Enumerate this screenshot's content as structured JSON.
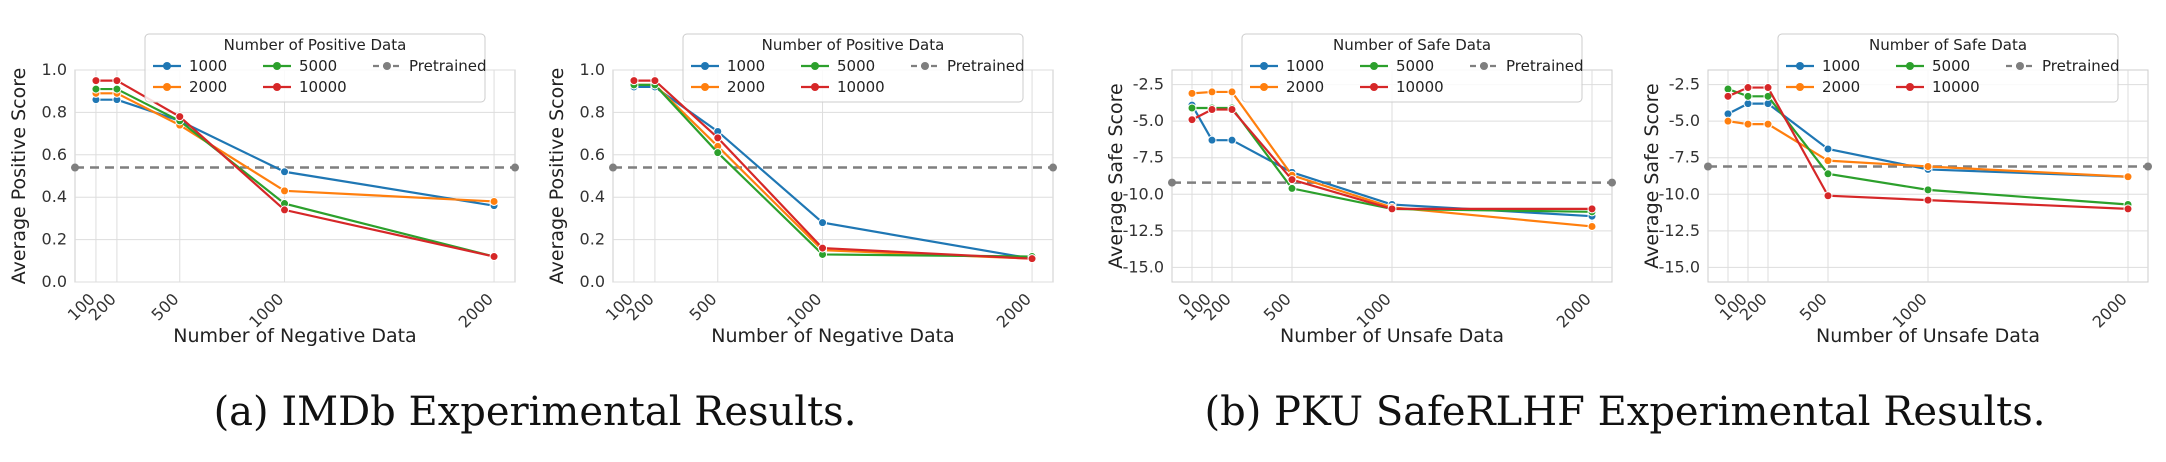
{
  "captions": {
    "a": "(a) IMDb Experimental Results.",
    "b": "(b) PKU SafeRLHF Experimental Results."
  },
  "colors": {
    "1000": "#1f77b4",
    "2000": "#ff7f0e",
    "5000": "#2ca02c",
    "10000": "#d62728",
    "Pretrained": "#7f7f7f",
    "grid": "#dddddd"
  },
  "chart_data": [
    {
      "type": "line",
      "legend_title": "Number of Positive Data",
      "legend_placement": "top",
      "xlabel": "Number of Negative Data",
      "ylabel": "Average Positive Score",
      "x": [
        100,
        200,
        500,
        1000,
        2000
      ],
      "xticks": [
        100,
        200,
        500,
        1000,
        2000
      ],
      "xlim": [
        0,
        2100
      ],
      "ylim": [
        0,
        1.0
      ],
      "yticks": [
        "0.0",
        "0.2",
        "0.4",
        "0.6",
        "0.8",
        "1.0"
      ],
      "grid": true,
      "series": [
        {
          "name": "1000",
          "values": [
            0.86,
            0.86,
            0.76,
            0.52,
            0.36
          ]
        },
        {
          "name": "2000",
          "values": [
            0.89,
            0.89,
            0.74,
            0.43,
            0.38
          ]
        },
        {
          "name": "5000",
          "values": [
            0.91,
            0.91,
            0.76,
            0.37,
            0.12
          ]
        },
        {
          "name": "10000",
          "values": [
            0.95,
            0.95,
            0.78,
            0.34,
            0.12
          ]
        }
      ],
      "baseline": {
        "name": "Pretrained",
        "value": 0.54
      }
    },
    {
      "type": "line",
      "legend_title": "Number of Positive Data",
      "legend_placement": "top",
      "xlabel": "Number of Negative Data",
      "ylabel": "Average Positive Score",
      "x": [
        100,
        200,
        500,
        1000,
        2000
      ],
      "xticks": [
        100,
        200,
        500,
        1000,
        2000
      ],
      "xlim": [
        0,
        2100
      ],
      "ylim": [
        0,
        1.0
      ],
      "yticks": [
        "0.0",
        "0.2",
        "0.4",
        "0.6",
        "0.8",
        "1.0"
      ],
      "grid": true,
      "series": [
        {
          "name": "1000",
          "values": [
            0.92,
            0.92,
            0.71,
            0.28,
            0.11
          ]
        },
        {
          "name": "2000",
          "values": [
            0.93,
            0.93,
            0.64,
            0.15,
            0.11
          ]
        },
        {
          "name": "5000",
          "values": [
            0.93,
            0.93,
            0.61,
            0.13,
            0.12
          ]
        },
        {
          "name": "10000",
          "values": [
            0.95,
            0.95,
            0.68,
            0.16,
            0.11
          ]
        }
      ],
      "baseline": {
        "name": "Pretrained",
        "value": 0.54
      }
    },
    {
      "type": "line",
      "legend_title": "Number of Safe Data",
      "legend_placement": "top",
      "xlabel": "Number of Unsafe Data",
      "ylabel": "Average Safe Score",
      "x": [
        0,
        100,
        200,
        500,
        1000,
        2000
      ],
      "xticks": [
        0,
        100,
        200,
        500,
        1000,
        2000
      ],
      "xlim": [
        -100,
        2100
      ],
      "ylim": [
        -16,
        -1.5
      ],
      "yticks": [
        "-2.5",
        "-5.0",
        "-7.5",
        "-10.0",
        "-12.5",
        "-15.0"
      ],
      "ytick_values": [
        -2.5,
        -5.0,
        -7.5,
        -10.0,
        -12.5,
        -15.0
      ],
      "grid": true,
      "series": [
        {
          "name": "1000",
          "values": [
            -3.9,
            -6.3,
            -6.3,
            -8.5,
            -10.7,
            -11.5
          ]
        },
        {
          "name": "2000",
          "values": [
            -3.1,
            -3.0,
            -3.0,
            -8.7,
            -10.9,
            -12.2
          ]
        },
        {
          "name": "5000",
          "values": [
            -4.1,
            -4.1,
            -4.1,
            -9.6,
            -11.0,
            -11.2
          ]
        },
        {
          "name": "10000",
          "values": [
            -4.9,
            -4.2,
            -4.2,
            -9.0,
            -11.0,
            -11.0
          ]
        }
      ],
      "baseline": {
        "name": "Pretrained",
        "value": -9.2
      }
    },
    {
      "type": "line",
      "legend_title": "Number of Safe Data",
      "legend_placement": "top",
      "xlabel": "Number of Unsafe Data",
      "ylabel": "Average Safe Score",
      "x": [
        0,
        100,
        200,
        500,
        1000,
        2000
      ],
      "xticks": [
        0,
        100,
        200,
        500,
        1000,
        2000
      ],
      "xlim": [
        -100,
        2100
      ],
      "ylim": [
        -16,
        -1.5
      ],
      "yticks": [
        "-2.5",
        "-5.0",
        "-7.5",
        "-10.0",
        "-12.5",
        "-15.0"
      ],
      "ytick_values": [
        -2.5,
        -5.0,
        -7.5,
        -10.0,
        -12.5,
        -15.0
      ],
      "grid": true,
      "series": [
        {
          "name": "1000",
          "values": [
            -4.5,
            -3.8,
            -3.8,
            -6.9,
            -8.3,
            -8.8
          ]
        },
        {
          "name": "2000",
          "values": [
            -5.0,
            -5.2,
            -5.2,
            -7.7,
            -8.1,
            -8.8
          ]
        },
        {
          "name": "5000",
          "values": [
            -2.8,
            -3.3,
            -3.3,
            -8.6,
            -9.7,
            -10.7
          ]
        },
        {
          "name": "10000",
          "values": [
            -3.3,
            -2.7,
            -2.7,
            -10.1,
            -10.4,
            -11.0
          ]
        }
      ],
      "baseline": {
        "name": "Pretrained",
        "value": -8.1
      }
    }
  ]
}
